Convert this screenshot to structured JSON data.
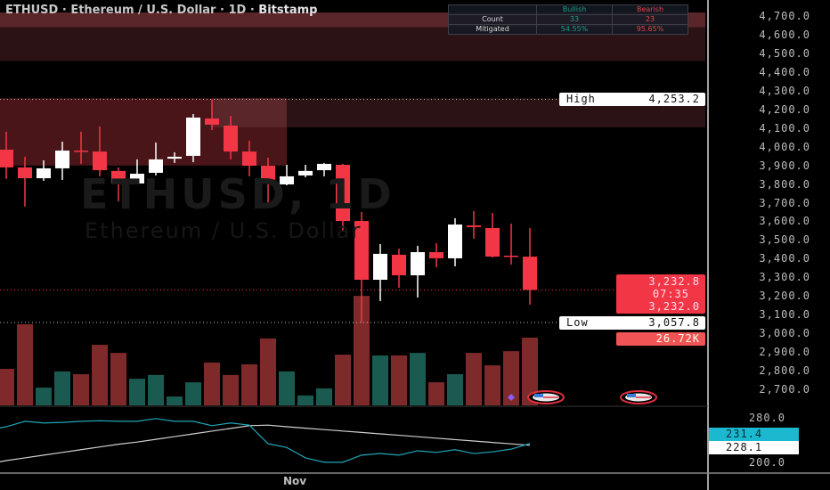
{
  "header": {
    "symbol": "ETHUSD",
    "title_rest": " · Ethereum / U.S. Dollar · 1D · ",
    "exchange": "Bitstamp"
  },
  "watermark": {
    "line1": "ETHUSD, 1D",
    "line2": "Ethereum / U.S. Dollar"
  },
  "stats_table": {
    "headers": [
      "",
      "Bullish",
      "Bearish"
    ],
    "rows": [
      {
        "label": "Count",
        "bullish": "33",
        "bearish": "23"
      },
      {
        "label": "Mitigated",
        "bullish": "54.55%",
        "bearish": "95.65%"
      }
    ]
  },
  "colors": {
    "up": "#ffffff",
    "down": "#f23645",
    "vol_up": "#1b5a50",
    "vol_down": "#7f2a2a",
    "indicator_fast": "#1fa5b8",
    "indicator_slow": "#d0d0d0",
    "zone_bright": "#5a2629",
    "zone_dark": "#2b1315",
    "zone_mid": "#4a1519"
  },
  "price_axis": {
    "ticks": [
      "4,700.0",
      "4,600.0",
      "4,500.0",
      "4,400.0",
      "4,300.0",
      "4,200.0",
      "4,100.0",
      "4,000.0",
      "3,900.0",
      "3,800.0",
      "3,700.0",
      "3,600.0",
      "3,500.0",
      "3,400.0",
      "3,300.0",
      "3,200.0",
      "3,100.0",
      "3,000.0",
      "2,900.0",
      "2,800.0",
      "2,700.0"
    ]
  },
  "markers": {
    "high_label": "High",
    "high_value": "4,253.2",
    "last_price": "3,232.8",
    "countdown": "07:35",
    "last_close_alt": "3,232.0",
    "low_label": "Low",
    "low_value": "3,057.8",
    "volume_label": "26.72K",
    "indicator_fast_value": "231.4",
    "indicator_slow_value": "228.1"
  },
  "indicator_axis": {
    "ticks": [
      "280.0",
      "200.0"
    ]
  },
  "time_axis": {
    "label": "Nov"
  },
  "chart_data": {
    "type": "candlestick",
    "ylim": [
      2700,
      4700
    ],
    "candles": [
      {
        "o": 3984,
        "h": 4080,
        "l": 3827,
        "c": 3889
      },
      {
        "o": 3889,
        "h": 3946,
        "l": 3679,
        "c": 3831
      },
      {
        "o": 3831,
        "h": 3927,
        "l": 3817,
        "c": 3884
      },
      {
        "o": 3884,
        "h": 4027,
        "l": 3822,
        "c": 3979
      },
      {
        "o": 3979,
        "h": 4080,
        "l": 3908,
        "c": 3978
      },
      {
        "o": 3974,
        "h": 4108,
        "l": 3841,
        "c": 3874
      },
      {
        "o": 3870,
        "h": 3889,
        "l": 3707,
        "c": 3803
      },
      {
        "o": 3803,
        "h": 3932,
        "l": 3798,
        "c": 3855
      },
      {
        "o": 3860,
        "h": 4022,
        "l": 3846,
        "c": 3932
      },
      {
        "o": 3936,
        "h": 3970,
        "l": 3913,
        "c": 3946
      },
      {
        "o": 3951,
        "h": 4175,
        "l": 3917,
        "c": 4156
      },
      {
        "o": 4151,
        "h": 4253.2,
        "l": 4089,
        "c": 4118
      },
      {
        "o": 4113,
        "h": 4165,
        "l": 3932,
        "c": 3974
      },
      {
        "o": 3974,
        "h": 4032,
        "l": 3841,
        "c": 3898
      },
      {
        "o": 3898,
        "h": 3941,
        "l": 3679,
        "c": 3808
      },
      {
        "o": 3798,
        "h": 3903,
        "l": 3793,
        "c": 3841
      },
      {
        "o": 3846,
        "h": 3903,
        "l": 3836,
        "c": 3870
      },
      {
        "o": 3874,
        "h": 3913,
        "l": 3841,
        "c": 3908
      },
      {
        "o": 3903,
        "h": 3908,
        "l": 3550,
        "c": 3602
      },
      {
        "o": 3602,
        "h": 3650,
        "l": 3057.8,
        "c": 3287
      },
      {
        "o": 3287,
        "h": 3478,
        "l": 3173,
        "c": 3426
      },
      {
        "o": 3421,
        "h": 3454,
        "l": 3244,
        "c": 3311
      },
      {
        "o": 3311,
        "h": 3469,
        "l": 3192,
        "c": 3435
      },
      {
        "o": 3435,
        "h": 3483,
        "l": 3354,
        "c": 3402
      },
      {
        "o": 3402,
        "h": 3617,
        "l": 3359,
        "c": 3583
      },
      {
        "o": 3578,
        "h": 3655,
        "l": 3507,
        "c": 3569
      },
      {
        "o": 3564,
        "h": 3645,
        "l": 3406,
        "c": 3411
      },
      {
        "o": 3416,
        "h": 3588,
        "l": 3368,
        "c": 3411
      },
      {
        "o": 3411,
        "h": 3564,
        "l": 3154,
        "c": 3232.8
      }
    ],
    "volume_k": [
      14.4,
      32.0,
      7.0,
      13.4,
      12.3,
      23.9,
      20.7,
      10.5,
      12.0,
      3.5,
      9.1,
      16.9,
      12.0,
      16.2,
      26.4,
      13.4,
      3.9,
      6.7,
      20.0,
      43.2,
      19.7,
      19.7,
      20.7,
      9.1,
      12.3,
      20.7,
      15.8,
      21.4,
      26.72
    ],
    "indicator": {
      "ylim": [
        200,
        280
      ],
      "fast": [
        262,
        272,
        269,
        270,
        272,
        273,
        272,
        272,
        277,
        272,
        272,
        264,
        269,
        265,
        231,
        224,
        205,
        197,
        197,
        210,
        213,
        210,
        218,
        215,
        220,
        213,
        216,
        221,
        231.4
      ],
      "slow": [
        200,
        205,
        210,
        215,
        220,
        225,
        230,
        234,
        239,
        244,
        249,
        254,
        259,
        264,
        265,
        262,
        259.4,
        256.8,
        254.2,
        251.6,
        249,
        246.4,
        243.8,
        241.1,
        238.5,
        235.9,
        233.3,
        230.7,
        228.1
      ]
    },
    "zones": [
      {
        "top": 4700,
        "bottom": 4620,
        "shade": "bright"
      },
      {
        "top": 4620,
        "bottom": 4440,
        "shade": "dark"
      },
      {
        "top": 4240,
        "bottom": 3880,
        "shade": "mid"
      },
      {
        "top": 4240,
        "bottom": 4085,
        "shade": "bright"
      }
    ]
  }
}
